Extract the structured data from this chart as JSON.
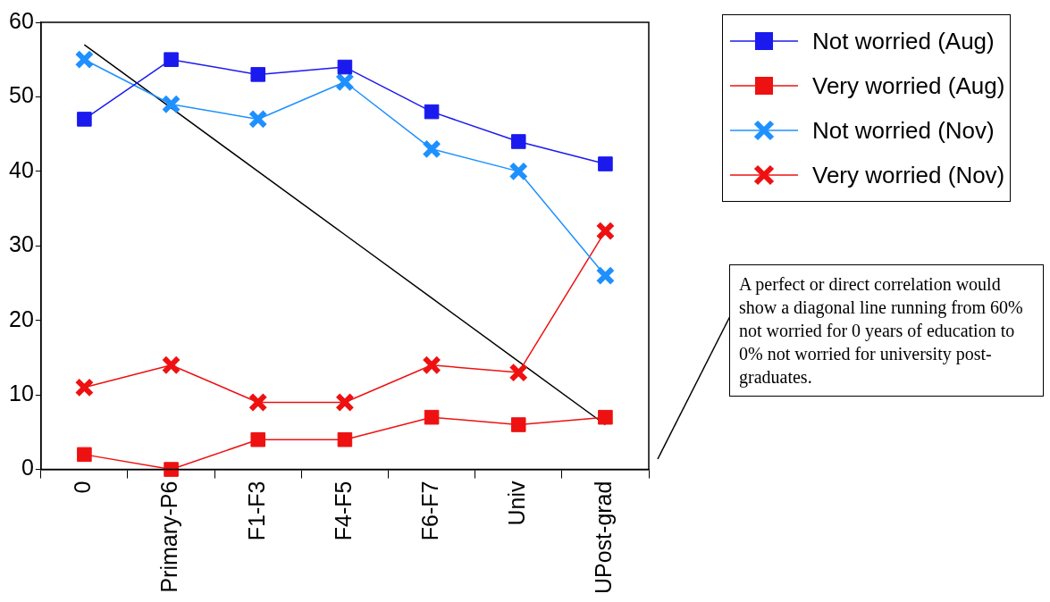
{
  "chart_data": {
    "type": "line",
    "categories": [
      "0",
      "Primary-P6",
      "F1-F3",
      "F4-F5",
      "F6-F7",
      "Univ",
      "UPost-grad"
    ],
    "series": [
      {
        "name": "Not worried (Aug)",
        "color": "#1a1aee",
        "marker": "square",
        "values": [
          47,
          55,
          53,
          54,
          48,
          44,
          41
        ]
      },
      {
        "name": "Very worried (Aug)",
        "color": "#ee1111",
        "marker": "square",
        "values": [
          2,
          0,
          4,
          4,
          7,
          6,
          7
        ]
      },
      {
        "name": "Not worried (Nov)",
        "color": "#1e90ff",
        "marker": "cross",
        "values": [
          55,
          49,
          47,
          52,
          43,
          40,
          26
        ]
      },
      {
        "name": "Very worried (Nov)",
        "color": "#ee1111",
        "marker": "cross",
        "values": [
          11,
          14,
          9,
          9,
          14,
          13,
          32
        ]
      },
      {
        "color": "#000000",
        "marker": "none",
        "values": [
          57,
          48.5,
          40,
          31.5,
          23,
          14.5,
          6
        ]
      }
    ],
    "ylim": [
      0,
      60
    ],
    "yticks": [
      0,
      10,
      20,
      30,
      40,
      50,
      60
    ],
    "grid": false,
    "legend": "top right",
    "annotations": [
      "A perfect or direct correlation would show a diagonal line running from 60% not worried for 0 years of education to 0% not worried for university post-graduates."
    ]
  }
}
